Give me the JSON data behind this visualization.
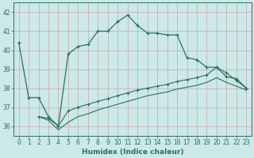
{
  "xlabel": "Humidex (Indice chaleur)",
  "bg_color": "#cce8e8",
  "grid_color": "#b0d0d0",
  "line_color": "#2a7060",
  "xlim": [
    -0.5,
    23.5
  ],
  "ylim": [
    35.5,
    42.5
  ],
  "xticks": [
    0,
    1,
    2,
    3,
    4,
    5,
    6,
    7,
    8,
    9,
    10,
    11,
    12,
    13,
    14,
    15,
    16,
    17,
    18,
    19,
    20,
    21,
    22,
    23
  ],
  "yticks": [
    36,
    37,
    38,
    39,
    40,
    41,
    42
  ],
  "series1_x": [
    0,
    1,
    2,
    3,
    4,
    5,
    6,
    7,
    8,
    9,
    10,
    11,
    12,
    13,
    14,
    15,
    16,
    17,
    18,
    19,
    20,
    21,
    22,
    23
  ],
  "series1_y": [
    40.4,
    37.5,
    37.5,
    36.5,
    36.0,
    39.8,
    40.2,
    40.3,
    41.0,
    41.0,
    41.5,
    41.85,
    41.3,
    40.9,
    40.9,
    40.8,
    40.8,
    39.6,
    39.5,
    39.1,
    39.1,
    38.6,
    38.5,
    38.0
  ],
  "series2_x": [
    2,
    3,
    4,
    5,
    6,
    7,
    8,
    9,
    10,
    11,
    12,
    13,
    14,
    15,
    16,
    17,
    18,
    19,
    20,
    21,
    22,
    23
  ],
  "series2_y": [
    36.5,
    36.4,
    36.0,
    36.8,
    37.0,
    37.15,
    37.3,
    37.45,
    37.6,
    37.75,
    37.9,
    38.0,
    38.1,
    38.2,
    38.35,
    38.45,
    38.55,
    38.7,
    39.1,
    38.8,
    38.4,
    38.0
  ],
  "series3_x": [
    2,
    3,
    4,
    5,
    6,
    7,
    8,
    9,
    10,
    11,
    12,
    13,
    14,
    15,
    16,
    17,
    18,
    19,
    20,
    21,
    22,
    23
  ],
  "series3_y": [
    36.5,
    36.3,
    35.8,
    36.2,
    36.5,
    36.65,
    36.85,
    37.0,
    37.15,
    37.3,
    37.45,
    37.6,
    37.7,
    37.8,
    37.95,
    38.05,
    38.15,
    38.3,
    38.55,
    38.3,
    38.1,
    37.9
  ]
}
